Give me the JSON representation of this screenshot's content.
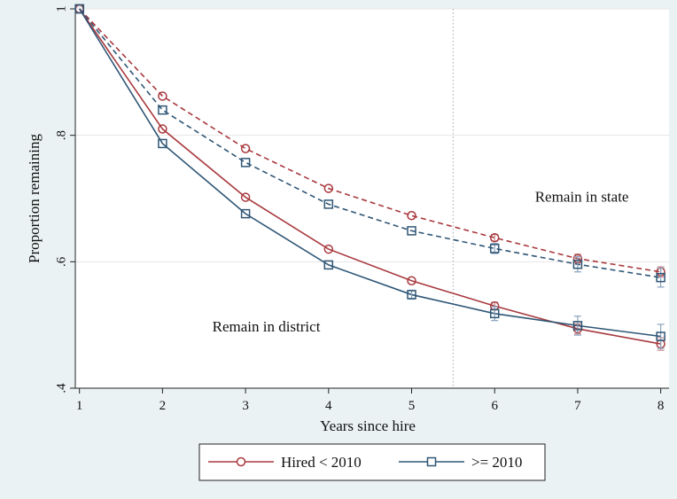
{
  "chart_data": {
    "type": "line",
    "xlabel": "Years since hire",
    "ylabel": "Proportion remaining",
    "x": [
      1,
      2,
      3,
      4,
      5,
      6,
      7,
      8
    ],
    "xlim": [
      0.95,
      8.1
    ],
    "ylim": [
      0.4,
      1.0
    ],
    "xticks": [
      1,
      2,
      3,
      4,
      5,
      6,
      7,
      8
    ],
    "xtick_labels": [
      "1",
      "2",
      "3",
      "4",
      "5",
      "6",
      "7",
      "8"
    ],
    "yticks": [
      0.4,
      0.6,
      0.8,
      1.0
    ],
    "ytick_labels": [
      ".4",
      ".6",
      ".8",
      "1"
    ],
    "grid": true,
    "vline": 5.5,
    "annotations": [
      {
        "text": "Remain in state",
        "x": 7.05,
        "y": 0.695
      },
      {
        "text": "Remain in district",
        "x": 3.25,
        "y": 0.49
      }
    ],
    "series": [
      {
        "name": "Hired < 2010",
        "group": "state",
        "marker": "circle",
        "dashed": true,
        "color": "#a8393e",
        "values": [
          1.0,
          0.862,
          0.779,
          0.716,
          0.673,
          0.638,
          0.605,
          0.584
        ],
        "err": [
          0,
          0,
          0,
          0,
          0,
          0.005,
          0.007,
          0.008
        ]
      },
      {
        "name": ">= 2010",
        "group": "state",
        "marker": "square",
        "dashed": true,
        "color": "#2f5676",
        "values": [
          1.0,
          0.84,
          0.757,
          0.691,
          0.649,
          0.621,
          0.596,
          0.575
        ],
        "err": [
          0,
          0,
          0,
          0,
          0,
          0.008,
          0.012,
          0.015
        ]
      },
      {
        "name": "Hired < 2010",
        "group": "district",
        "marker": "circle",
        "dashed": false,
        "color": "#a8393e",
        "values": [
          1.0,
          0.81,
          0.702,
          0.62,
          0.57,
          0.53,
          0.494,
          0.47
        ],
        "err": [
          0,
          0,
          0,
          0,
          0,
          0.006,
          0.008,
          0.01
        ]
      },
      {
        "name": ">= 2010",
        "group": "district",
        "marker": "square",
        "dashed": false,
        "color": "#2f5676",
        "values": [
          1.0,
          0.787,
          0.676,
          0.595,
          0.548,
          0.518,
          0.499,
          0.482
        ],
        "err": [
          0,
          0,
          0,
          0,
          0.007,
          0.011,
          0.015,
          0.019
        ]
      }
    ],
    "legend": {
      "placement": "bottom",
      "entries": [
        {
          "label": "Hired < 2010",
          "color": "#a8393e",
          "marker": "circle"
        },
        {
          "label": ">= 2010",
          "color": "#2f5676",
          "marker": "square"
        }
      ]
    },
    "colors": {
      "background": "#eaf2f3",
      "plot_area": "#ffffff",
      "grid": "#e6e6e6",
      "red": "#a8393e",
      "blue": "#2f5676",
      "blue_error": "#8aa3bd",
      "red_error": "#c98d90"
    }
  }
}
